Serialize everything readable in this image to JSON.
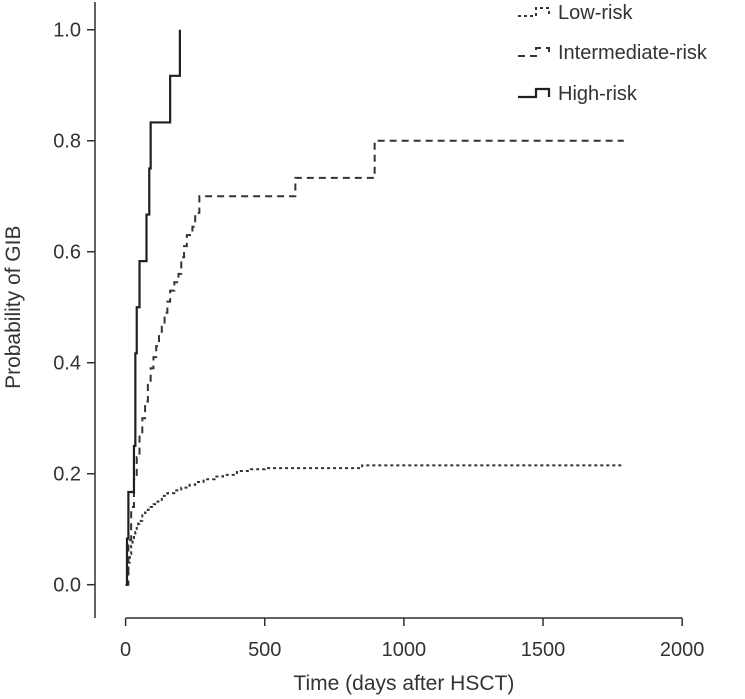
{
  "chart_data": {
    "type": "line",
    "title": "",
    "xlabel": "Time (days after HSCT)",
    "ylabel": "Probability of GIB",
    "xlim": [
      -110,
      2100
    ],
    "ylim": [
      -0.06,
      1.05
    ],
    "x_ticks": [
      0,
      500,
      1000,
      1500,
      2000
    ],
    "x_tick_labels": [
      "0",
      "500",
      "1000",
      "1500",
      "2000"
    ],
    "y_ticks": [
      0.0,
      0.2,
      0.4,
      0.6,
      0.8,
      1.0
    ],
    "y_tick_labels": [
      "0.0",
      "0.2",
      "0.4",
      "0.6",
      "0.8",
      "1.0"
    ],
    "grid": false,
    "legend_position": "top-right",
    "series": [
      {
        "name": "Low-risk",
        "style": "dotted",
        "color": "#333333",
        "points": [
          [
            0,
            0.0
          ],
          [
            5,
            0.02
          ],
          [
            10,
            0.04
          ],
          [
            15,
            0.055
          ],
          [
            20,
            0.07
          ],
          [
            25,
            0.08
          ],
          [
            30,
            0.09
          ],
          [
            35,
            0.095
          ],
          [
            40,
            0.105
          ],
          [
            45,
            0.11
          ],
          [
            50,
            0.115
          ],
          [
            60,
            0.125
          ],
          [
            70,
            0.13
          ],
          [
            80,
            0.135
          ],
          [
            90,
            0.14
          ],
          [
            100,
            0.145
          ],
          [
            115,
            0.15
          ],
          [
            130,
            0.16
          ],
          [
            150,
            0.165
          ],
          [
            175,
            0.17
          ],
          [
            200,
            0.175
          ],
          [
            230,
            0.18
          ],
          [
            250,
            0.185
          ],
          [
            280,
            0.19
          ],
          [
            320,
            0.195
          ],
          [
            350,
            0.198
          ],
          [
            400,
            0.205
          ],
          [
            450,
            0.208
          ],
          [
            500,
            0.21
          ],
          [
            700,
            0.21
          ],
          [
            850,
            0.215
          ],
          [
            1000,
            0.215
          ],
          [
            1500,
            0.215
          ],
          [
            1790,
            0.215
          ]
        ]
      },
      {
        "name": "Intermediate-risk",
        "style": "dashed",
        "color": "#333333",
        "points": [
          [
            0,
            0.0
          ],
          [
            10,
            0.08
          ],
          [
            20,
            0.14
          ],
          [
            30,
            0.19
          ],
          [
            40,
            0.23
          ],
          [
            50,
            0.27
          ],
          [
            60,
            0.3
          ],
          [
            70,
            0.33
          ],
          [
            80,
            0.36
          ],
          [
            90,
            0.39
          ],
          [
            100,
            0.41
          ],
          [
            110,
            0.43
          ],
          [
            120,
            0.45
          ],
          [
            130,
            0.47
          ],
          [
            140,
            0.49
          ],
          [
            150,
            0.51
          ],
          [
            160,
            0.53
          ],
          [
            175,
            0.545
          ],
          [
            190,
            0.56
          ],
          [
            200,
            0.59
          ],
          [
            210,
            0.61
          ],
          [
            220,
            0.63
          ],
          [
            240,
            0.645
          ],
          [
            250,
            0.67
          ],
          [
            265,
            0.7
          ],
          [
            600,
            0.7
          ],
          [
            610,
            0.733
          ],
          [
            885,
            0.733
          ],
          [
            895,
            0.8
          ],
          [
            1790,
            0.8
          ]
        ]
      },
      {
        "name": "High-risk",
        "style": "solid",
        "color": "#1f1f1f",
        "points": [
          [
            0,
            0.0
          ],
          [
            5,
            0.083
          ],
          [
            10,
            0.167
          ],
          [
            25,
            0.167
          ],
          [
            30,
            0.25
          ],
          [
            35,
            0.417
          ],
          [
            40,
            0.5
          ],
          [
            50,
            0.583
          ],
          [
            70,
            0.583
          ],
          [
            75,
            0.667
          ],
          [
            85,
            0.75
          ],
          [
            90,
            0.833
          ],
          [
            150,
            0.833
          ],
          [
            160,
            0.917
          ],
          [
            185,
            0.917
          ],
          [
            195,
            1.0
          ]
        ]
      }
    ]
  }
}
